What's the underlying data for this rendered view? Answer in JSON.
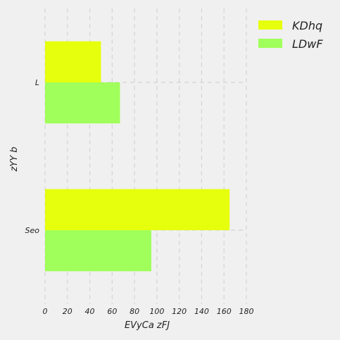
{
  "chart_data": {
    "type": "bar",
    "orientation": "horizontal",
    "categories": [
      "L",
      "Seo"
    ],
    "series": [
      {
        "name": "KDhq",
        "values": [
          50,
          165
        ],
        "color": "#e6ff0d"
      },
      {
        "name": "LDwF",
        "values": [
          67,
          95
        ],
        "color": "#a0ff5a"
      }
    ],
    "xlabel": "EVyCa  zFJ",
    "ylabel": "zYY  b",
    "xlim": [
      0,
      180
    ],
    "xticks": [
      0,
      20,
      40,
      60,
      80,
      100,
      120,
      140,
      160,
      180
    ],
    "grid": true,
    "legend_position": "top-right",
    "background": "#f0f0f0"
  }
}
